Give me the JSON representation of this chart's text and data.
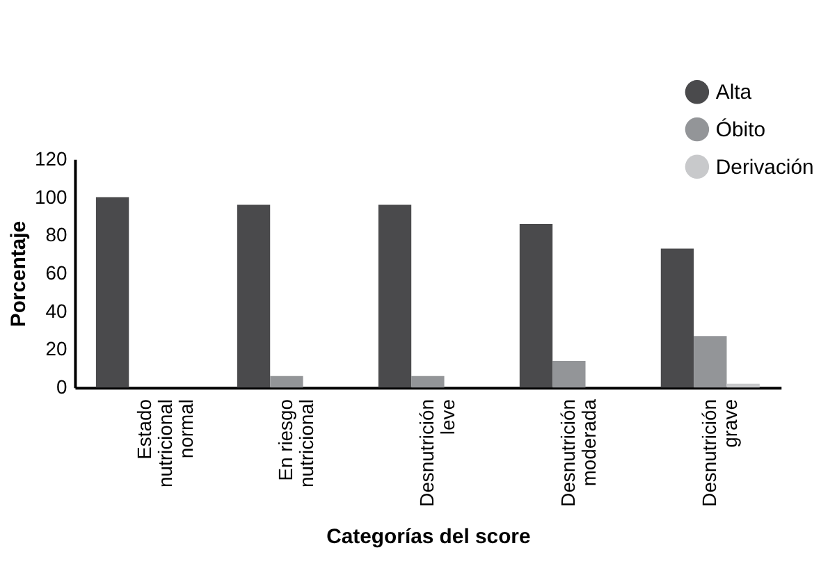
{
  "chart_data": {
    "type": "bar",
    "xlabel": "Categorías del score",
    "ylabel": "Porcentaje",
    "categories": [
      "Estado\nnutricional\nnormal",
      "En riesgo\nnutricional",
      "Desnutrición\nleve",
      "Desnutrición\nmoderada",
      "Desnutrición\ngrave"
    ],
    "series": [
      {
        "name": "Alta",
        "color": "#4a4a4c",
        "values": [
          100,
          96,
          96,
          86,
          73
        ]
      },
      {
        "name": "Óbito",
        "color": "#939598",
        "values": [
          0,
          6,
          6,
          14,
          27
        ]
      },
      {
        "name": "Derivación",
        "color": "#c8c9cb",
        "values": [
          0,
          0,
          0,
          0,
          2
        ]
      }
    ],
    "ylim": [
      0,
      120
    ],
    "yticks": [
      0,
      20,
      40,
      60,
      80,
      100,
      120
    ],
    "grid": false,
    "legend": "top right"
  }
}
